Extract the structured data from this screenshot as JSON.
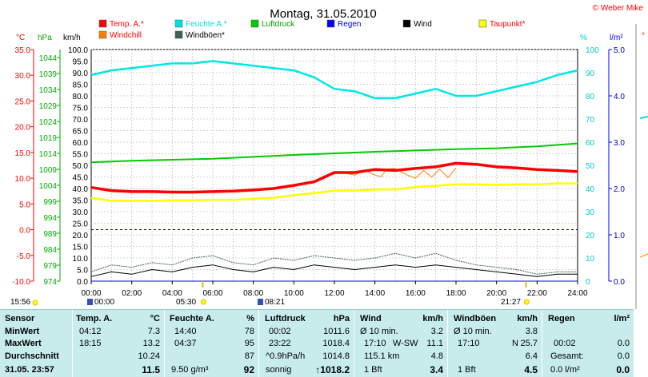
{
  "title": "Montag, 31.05.2010",
  "credit": "© Weber Mike",
  "legend": [
    {
      "label": "Temp. A.*",
      "color": "#ff0000",
      "label_color": "#ff0000"
    },
    {
      "label": "Feuchte A.*",
      "color": "#00e0e0",
      "label_color": "#00e0e0"
    },
    {
      "label": "Luftdruck",
      "color": "#00cc00",
      "label_color": "#00a000"
    },
    {
      "label": "Regen",
      "color": "#0000ff",
      "label_color": "#0000ff"
    },
    {
      "label": "Wind",
      "color": "#000000",
      "label_color": "#000000"
    },
    {
      "label": "Taupunkt*",
      "color": "#ffff00",
      "label_color": "#ff0000"
    },
    {
      "label": "Windchill",
      "color": "#ff8000",
      "label_color": "#ff0000"
    },
    {
      "label": "Windböen*",
      "color": "#406060",
      "label_color": "#000000"
    }
  ],
  "axes": {
    "temp_unit": "°C",
    "hpa_unit": "hPa",
    "kmh_unit": "km/h",
    "pct_unit": "%",
    "rain_unit": "l/m²",
    "temp_ticks": [
      "35.0",
      "30.0",
      "25.0",
      "20.0",
      "15.0",
      "10.0",
      "5.0",
      "0.0",
      "-5.0",
      "-10.0"
    ],
    "hpa_ticks": [
      "1044",
      "1039",
      "1034",
      "1029",
      "1024",
      "1019",
      "1014",
      "1009",
      "1004",
      "999",
      "994",
      "989",
      "984",
      "979",
      "974"
    ],
    "kmh_ticks": [
      "100.0",
      "95.0",
      "90.0",
      "85.0",
      "80.0",
      "75.0",
      "70.0",
      "65.0",
      "60.0",
      "55.0",
      "50.0",
      "45.0",
      "40.0",
      "35.0",
      "30.0",
      "25.0",
      "20.0",
      "15.0",
      "10.0",
      "5.0",
      "0.0"
    ],
    "pct_ticks": [
      "100",
      "90",
      "80",
      "70",
      "60",
      "50",
      "40",
      "30",
      "20",
      "10",
      "0"
    ],
    "rain_ticks": [
      "5.0",
      "4.0",
      "3.0",
      "2.0",
      "1.0",
      "0.0"
    ],
    "time_ticks": [
      "00:00",
      "02:00",
      "04:00",
      "06:00",
      "08:00",
      "10:00",
      "12:00",
      "14:00",
      "16:00",
      "18:00",
      "20:00",
      "22:00",
      "24:00"
    ]
  },
  "sun": {
    "sunrise": "05:30",
    "sunset": "21:27",
    "left_time": "15:56",
    "moon_a": "00:00",
    "moon_b": "08:21"
  },
  "chart_data": {
    "type": "line",
    "title": "Montag, 31.05.2010",
    "x_label": "",
    "x_range": [
      "00:00",
      "24:00"
    ],
    "series": [
      {
        "name": "Temp. A.*",
        "unit": "°C",
        "hours": [
          0,
          1,
          2,
          3,
          4,
          5,
          6,
          7,
          8,
          9,
          10,
          11,
          12,
          13,
          14,
          15,
          16,
          17,
          18,
          19,
          20,
          21,
          22,
          23,
          24
        ],
        "values": [
          8.2,
          7.6,
          7.4,
          7.4,
          7.3,
          7.3,
          7.4,
          7.5,
          7.7,
          8.0,
          8.6,
          9.3,
          11.1,
          11.1,
          11.7,
          11.5,
          11.9,
          12.2,
          12.9,
          12.7,
          12.2,
          12.0,
          11.7,
          11.5,
          11.3
        ]
      },
      {
        "name": "Feuchte A.*",
        "unit": "%",
        "hours": [
          0,
          1,
          2,
          3,
          4,
          5,
          6,
          7,
          8,
          9,
          10,
          11,
          12,
          13,
          14,
          15,
          16,
          17,
          18,
          19,
          20,
          21,
          22,
          23,
          24
        ],
        "values": [
          89,
          91,
          92,
          93,
          94,
          94,
          95,
          94,
          93,
          92,
          91,
          88,
          83,
          82,
          79,
          79,
          81,
          83,
          80,
          80,
          82,
          84,
          86,
          89,
          91
        ]
      },
      {
        "name": "Luftdruck",
        "unit": "hPa",
        "hours": [
          0,
          2,
          4,
          6,
          8,
          10,
          12,
          14,
          16,
          18,
          20,
          22,
          24
        ],
        "values": [
          1011.2,
          1011.7,
          1012.0,
          1012.3,
          1012.9,
          1013.5,
          1014.0,
          1014.5,
          1014.9,
          1015.3,
          1015.6,
          1016.2,
          1017.1
        ]
      },
      {
        "name": "Regen",
        "unit": "l/m²",
        "hours": [
          0,
          24
        ],
        "values": [
          0.0,
          0.0
        ]
      },
      {
        "name": "Taupunkt*",
        "unit": "°C",
        "hours": [
          0,
          1,
          2,
          3,
          4,
          5,
          6,
          7,
          8,
          9,
          10,
          11,
          12,
          13,
          14,
          15,
          16,
          17,
          18,
          19,
          20,
          21,
          22,
          23,
          24
        ],
        "values": [
          6.2,
          5.6,
          5.6,
          5.6,
          5.7,
          5.7,
          5.8,
          5.8,
          6.0,
          6.2,
          6.7,
          7.1,
          7.6,
          7.6,
          7.8,
          7.8,
          8.3,
          8.5,
          8.8,
          8.8,
          8.7,
          8.8,
          8.8,
          9.0,
          9.0
        ]
      },
      {
        "name": "Windchill",
        "unit": "°C",
        "hours": [
          12.5,
          13,
          13.5,
          14,
          14.3,
          14.6,
          15,
          15.6,
          16,
          16.4,
          16.8,
          17.2,
          17.6,
          18
        ],
        "values": [
          11.0,
          10.6,
          11.5,
          10.6,
          10.3,
          11.8,
          11.9,
          10.6,
          10.0,
          11.5,
          10.2,
          11.8,
          10.1,
          12.0
        ]
      },
      {
        "name": "Wind",
        "unit": "km/h",
        "hours": [
          0,
          1,
          2,
          3,
          4,
          5,
          6,
          7,
          8,
          9,
          10,
          11,
          12,
          13,
          14,
          15,
          16,
          17,
          18,
          19,
          20,
          21,
          22,
          23,
          24
        ],
        "values": [
          2,
          4,
          3,
          5,
          4,
          6,
          7,
          5,
          4,
          6,
          5,
          7,
          6,
          5,
          6,
          7,
          6,
          7,
          6,
          5,
          4,
          3,
          2,
          3,
          3
        ]
      },
      {
        "name": "Windböen*",
        "unit": "km/h",
        "hours": [
          0,
          1,
          2,
          3,
          4,
          5,
          6,
          7,
          8,
          9,
          10,
          11,
          12,
          13,
          14,
          15,
          16,
          17,
          18,
          19,
          20,
          21,
          22,
          23,
          24
        ],
        "values": [
          4,
          7,
          6,
          8,
          7,
          10,
          11,
          8,
          7,
          10,
          9,
          11,
          10,
          9,
          10,
          12,
          10,
          12,
          9,
          7,
          6,
          5,
          3,
          4,
          4
        ]
      }
    ]
  },
  "stats": {
    "sensor": {
      "header": "Sensor",
      "rows": [
        "MinWert",
        "MaxWert",
        "Durchschnitt"
      ],
      "footer": "31.05. 23:57"
    },
    "temp": {
      "header": "Temp. A.",
      "unit": "°C",
      "min_time": "04:12",
      "min": "7.3",
      "max_time": "18:15",
      "max": "13.2",
      "avg": "10.24",
      "current": "11.5"
    },
    "humidity": {
      "header": "Feuchte A.",
      "unit": "%",
      "min_time": "14:40",
      "min": "78",
      "max_time": "04:37",
      "max": "95",
      "avg": "87",
      "abs": "9.50 g/m³",
      "current": "92"
    },
    "pressure": {
      "header": "Luftdruck",
      "unit": "hPa",
      "min_time": "00:02",
      "min": "1011.6",
      "max_time": "23:22",
      "max": "1018.4",
      "trend": "^0.9hPa/h",
      "avg": "1014.8",
      "forecast": "sonnig",
      "current": "↑1018.2"
    },
    "wind": {
      "header": "Wind",
      "unit": "km/h",
      "r1_label": "Ø 10 min.",
      "r1": "3.2",
      "r2_time": "17:10",
      "r2_dir": "W-SW",
      "r2": "11.1",
      "r3_label": "115.1 km",
      "r3": "4.8",
      "r4_label": "1 Bft",
      "r4": "3.4"
    },
    "gusts": {
      "header": "Windböen",
      "unit": "km/h",
      "r1_label": "Ø 10 min.",
      "r1": "3.8",
      "r2_time": "17:10",
      "r2_dir": "N",
      "r2": "25.7",
      "r3": "6.4",
      "r4_label": "1 Bft",
      "r4": "4.5"
    },
    "rain": {
      "header": "Regen",
      "unit": "l/m²",
      "r2_time": "00:02",
      "r2": "0.0",
      "r3_label": "Gesamt:",
      "r3": "0.0",
      "r4_label": "0.0 l/m²",
      "r4": "0.0"
    }
  }
}
